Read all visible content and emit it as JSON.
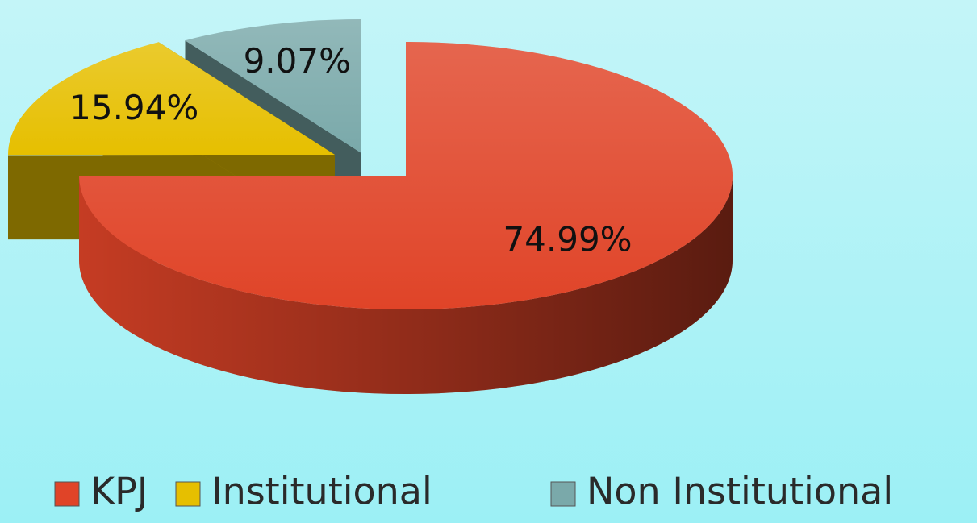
{
  "chart_data": {
    "type": "pie",
    "categories": [
      "KPJ",
      "Institutional",
      "Non Institutional"
    ],
    "values": [
      74.99,
      15.94,
      9.07
    ],
    "value_labels": [
      "74.99%",
      "15.94%",
      "9.07%"
    ],
    "colors": [
      "#e04428",
      "#e6bf00",
      "#7aa9aa"
    ],
    "legend": "bottom"
  }
}
